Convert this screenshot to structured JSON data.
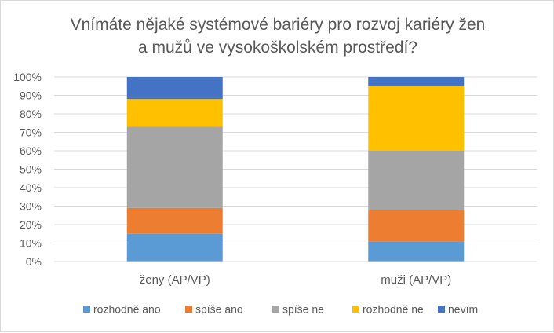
{
  "chart_data": {
    "type": "bar",
    "stacked": true,
    "percent_stacked": true,
    "title_lines": [
      "Vnímáte nějaké systémové bariéry pro rozvoj kariéry žen",
      "a mužů ve vysokoškolském prostředí?"
    ],
    "categories": [
      "ženy (AP/VP)",
      "muži (AP/VP)"
    ],
    "series": [
      {
        "name": "rozhodně ano",
        "color": "#5b9bd5",
        "values": [
          15,
          11
        ]
      },
      {
        "name": "spíše ano",
        "color": "#ed7d31",
        "values": [
          14,
          17
        ]
      },
      {
        "name": "spíše ne",
        "color": "#a5a5a5",
        "values": [
          44,
          32
        ]
      },
      {
        "name": "rozhodně ne",
        "color": "#ffc000",
        "values": [
          15,
          35
        ]
      },
      {
        "name": "nevím",
        "color": "#4472c4",
        "values": [
          12,
          5
        ]
      }
    ],
    "y_ticks": [
      "0%",
      "10%",
      "20%",
      "30%",
      "40%",
      "50%",
      "60%",
      "70%",
      "80%",
      "90%",
      "100%"
    ],
    "ylim": [
      0,
      100
    ],
    "grid": true,
    "legend_position": "bottom"
  }
}
